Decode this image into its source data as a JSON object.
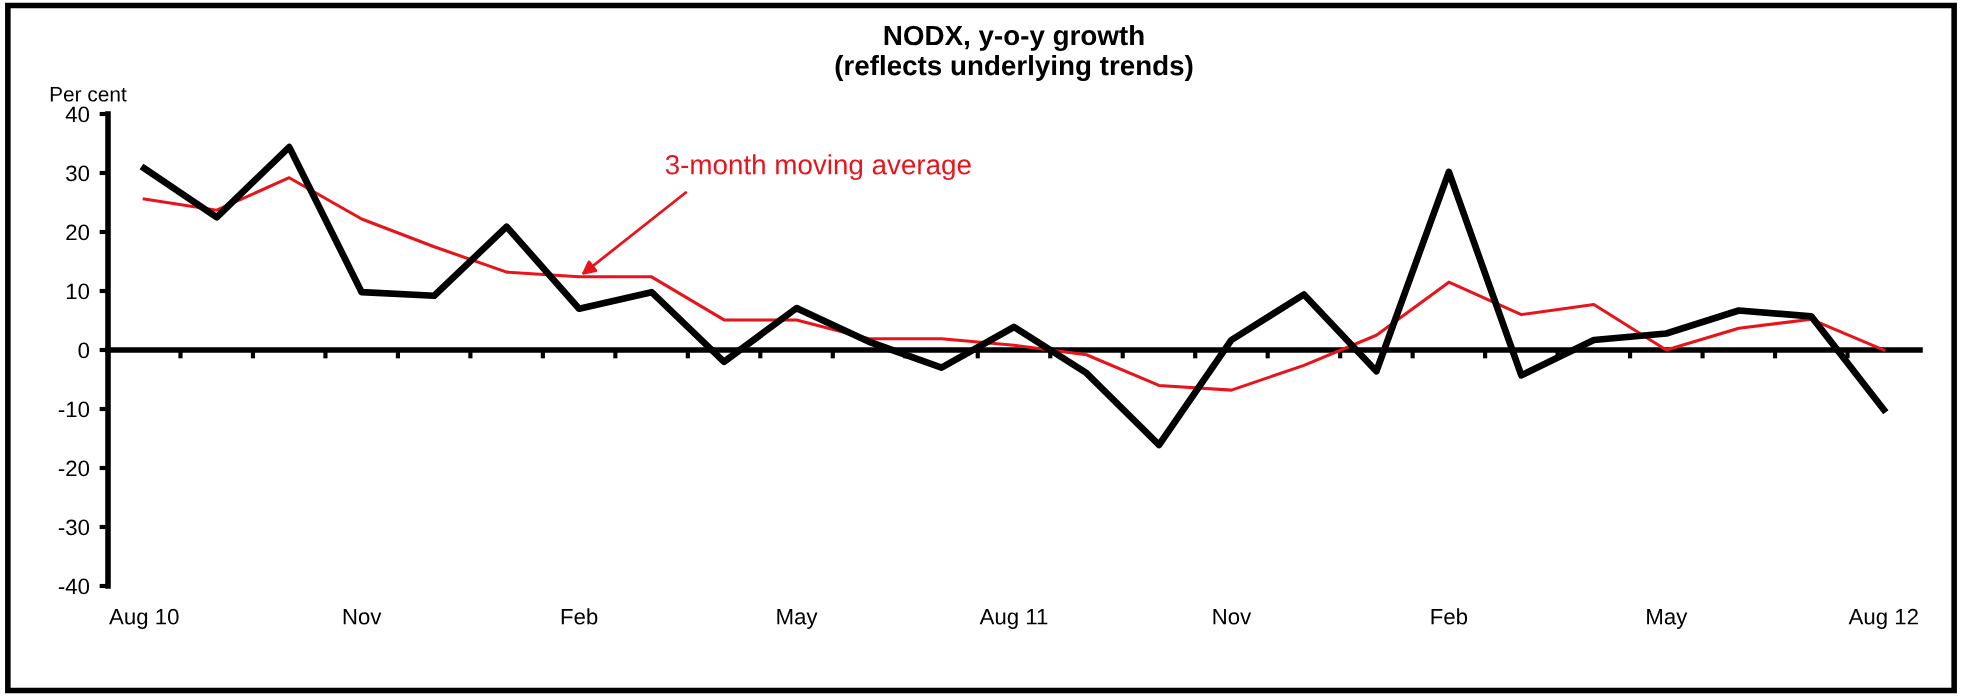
{
  "chart_data": {
    "type": "line",
    "title": "NODX, y-o-y growth\n(reflects underlying trends)",
    "ylabel": "Per cent",
    "categories": [
      "Aug 10",
      null,
      null,
      "Nov",
      null,
      null,
      "Feb",
      null,
      null,
      "May",
      null,
      null,
      "Aug 11",
      null,
      null,
      "Nov",
      null,
      null,
      "Feb",
      null,
      null,
      "May",
      null,
      null,
      "Aug 12"
    ],
    "series": [
      {
        "color": "#000000",
        "values": [
          30.8,
          22.5,
          34.4,
          9.8,
          9.2,
          20.9,
          7.0,
          9.8,
          -2.0,
          7.1,
          1.4,
          -3.0,
          3.9,
          -3.9,
          -16.1,
          1.7,
          9.4,
          -3.6,
          30.2,
          -4.3,
          1.7,
          2.8,
          6.7,
          5.7,
          -10.1
        ]
      },
      {
        "name": "3-month moving average",
        "color": "#e8141c",
        "values": [
          25.6,
          23.7,
          29.2,
          22.2,
          17.5,
          13.2,
          12.4,
          12.4,
          5.1,
          5.1,
          1.9,
          1.9,
          0.8,
          -0.8,
          -6.0,
          -6.8,
          -2.6,
          2.5,
          11.5,
          6.0,
          7.7,
          0.0,
          3.7,
          5.2,
          0.0
        ]
      }
    ],
    "ylim": [
      -40,
      40
    ],
    "yticks": [
      -40,
      -30,
      -20,
      -10,
      0,
      10,
      20,
      30,
      40
    ],
    "legend": false,
    "marker": "none",
    "line_style": "solid"
  }
}
